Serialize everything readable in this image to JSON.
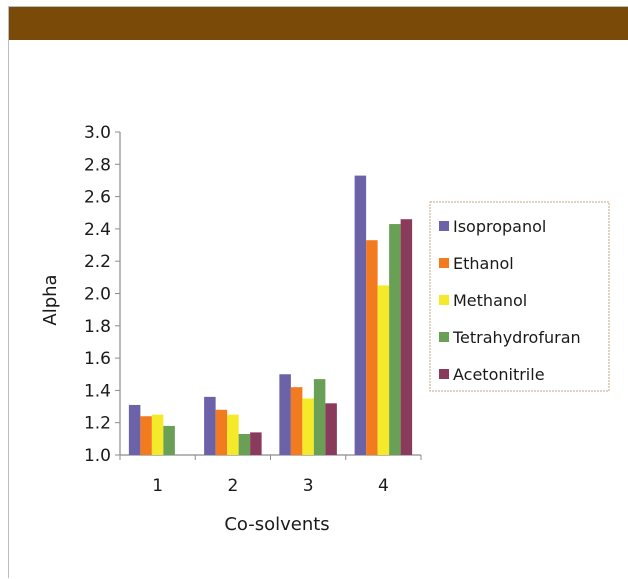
{
  "header": {
    "color": "#7a4a08"
  },
  "chart_data": {
    "type": "bar",
    "title": "",
    "xlabel": "Co-solvents",
    "ylabel": "Alpha",
    "ylim": [
      1.0,
      3.0
    ],
    "yticks": [
      "1.0",
      "1.2",
      "1.4",
      "1.6",
      "1.8",
      "2.0",
      "2.2",
      "2.4",
      "2.6",
      "2.8",
      "3.0"
    ],
    "categories": [
      "1",
      "2",
      "3",
      "4"
    ],
    "legend_position": "right",
    "grid": false,
    "series": [
      {
        "name": "Isopropanol",
        "color": "#6b62a8",
        "values": [
          1.31,
          1.36,
          1.5,
          2.73
        ]
      },
      {
        "name": "Ethanol",
        "color": "#f27a1f",
        "values": [
          1.24,
          1.28,
          1.42,
          2.33
        ]
      },
      {
        "name": "Methanol",
        "color": "#f5ea2a",
        "values": [
          1.25,
          1.25,
          1.35,
          2.05
        ]
      },
      {
        "name": "Tetrahydrofuran",
        "color": "#6aa055",
        "values": [
          1.18,
          1.13,
          1.47,
          2.43
        ]
      },
      {
        "name": "Acetonitrile",
        "color": "#8a3a5a",
        "values": [
          1.0,
          1.14,
          1.32,
          2.46
        ]
      }
    ]
  }
}
